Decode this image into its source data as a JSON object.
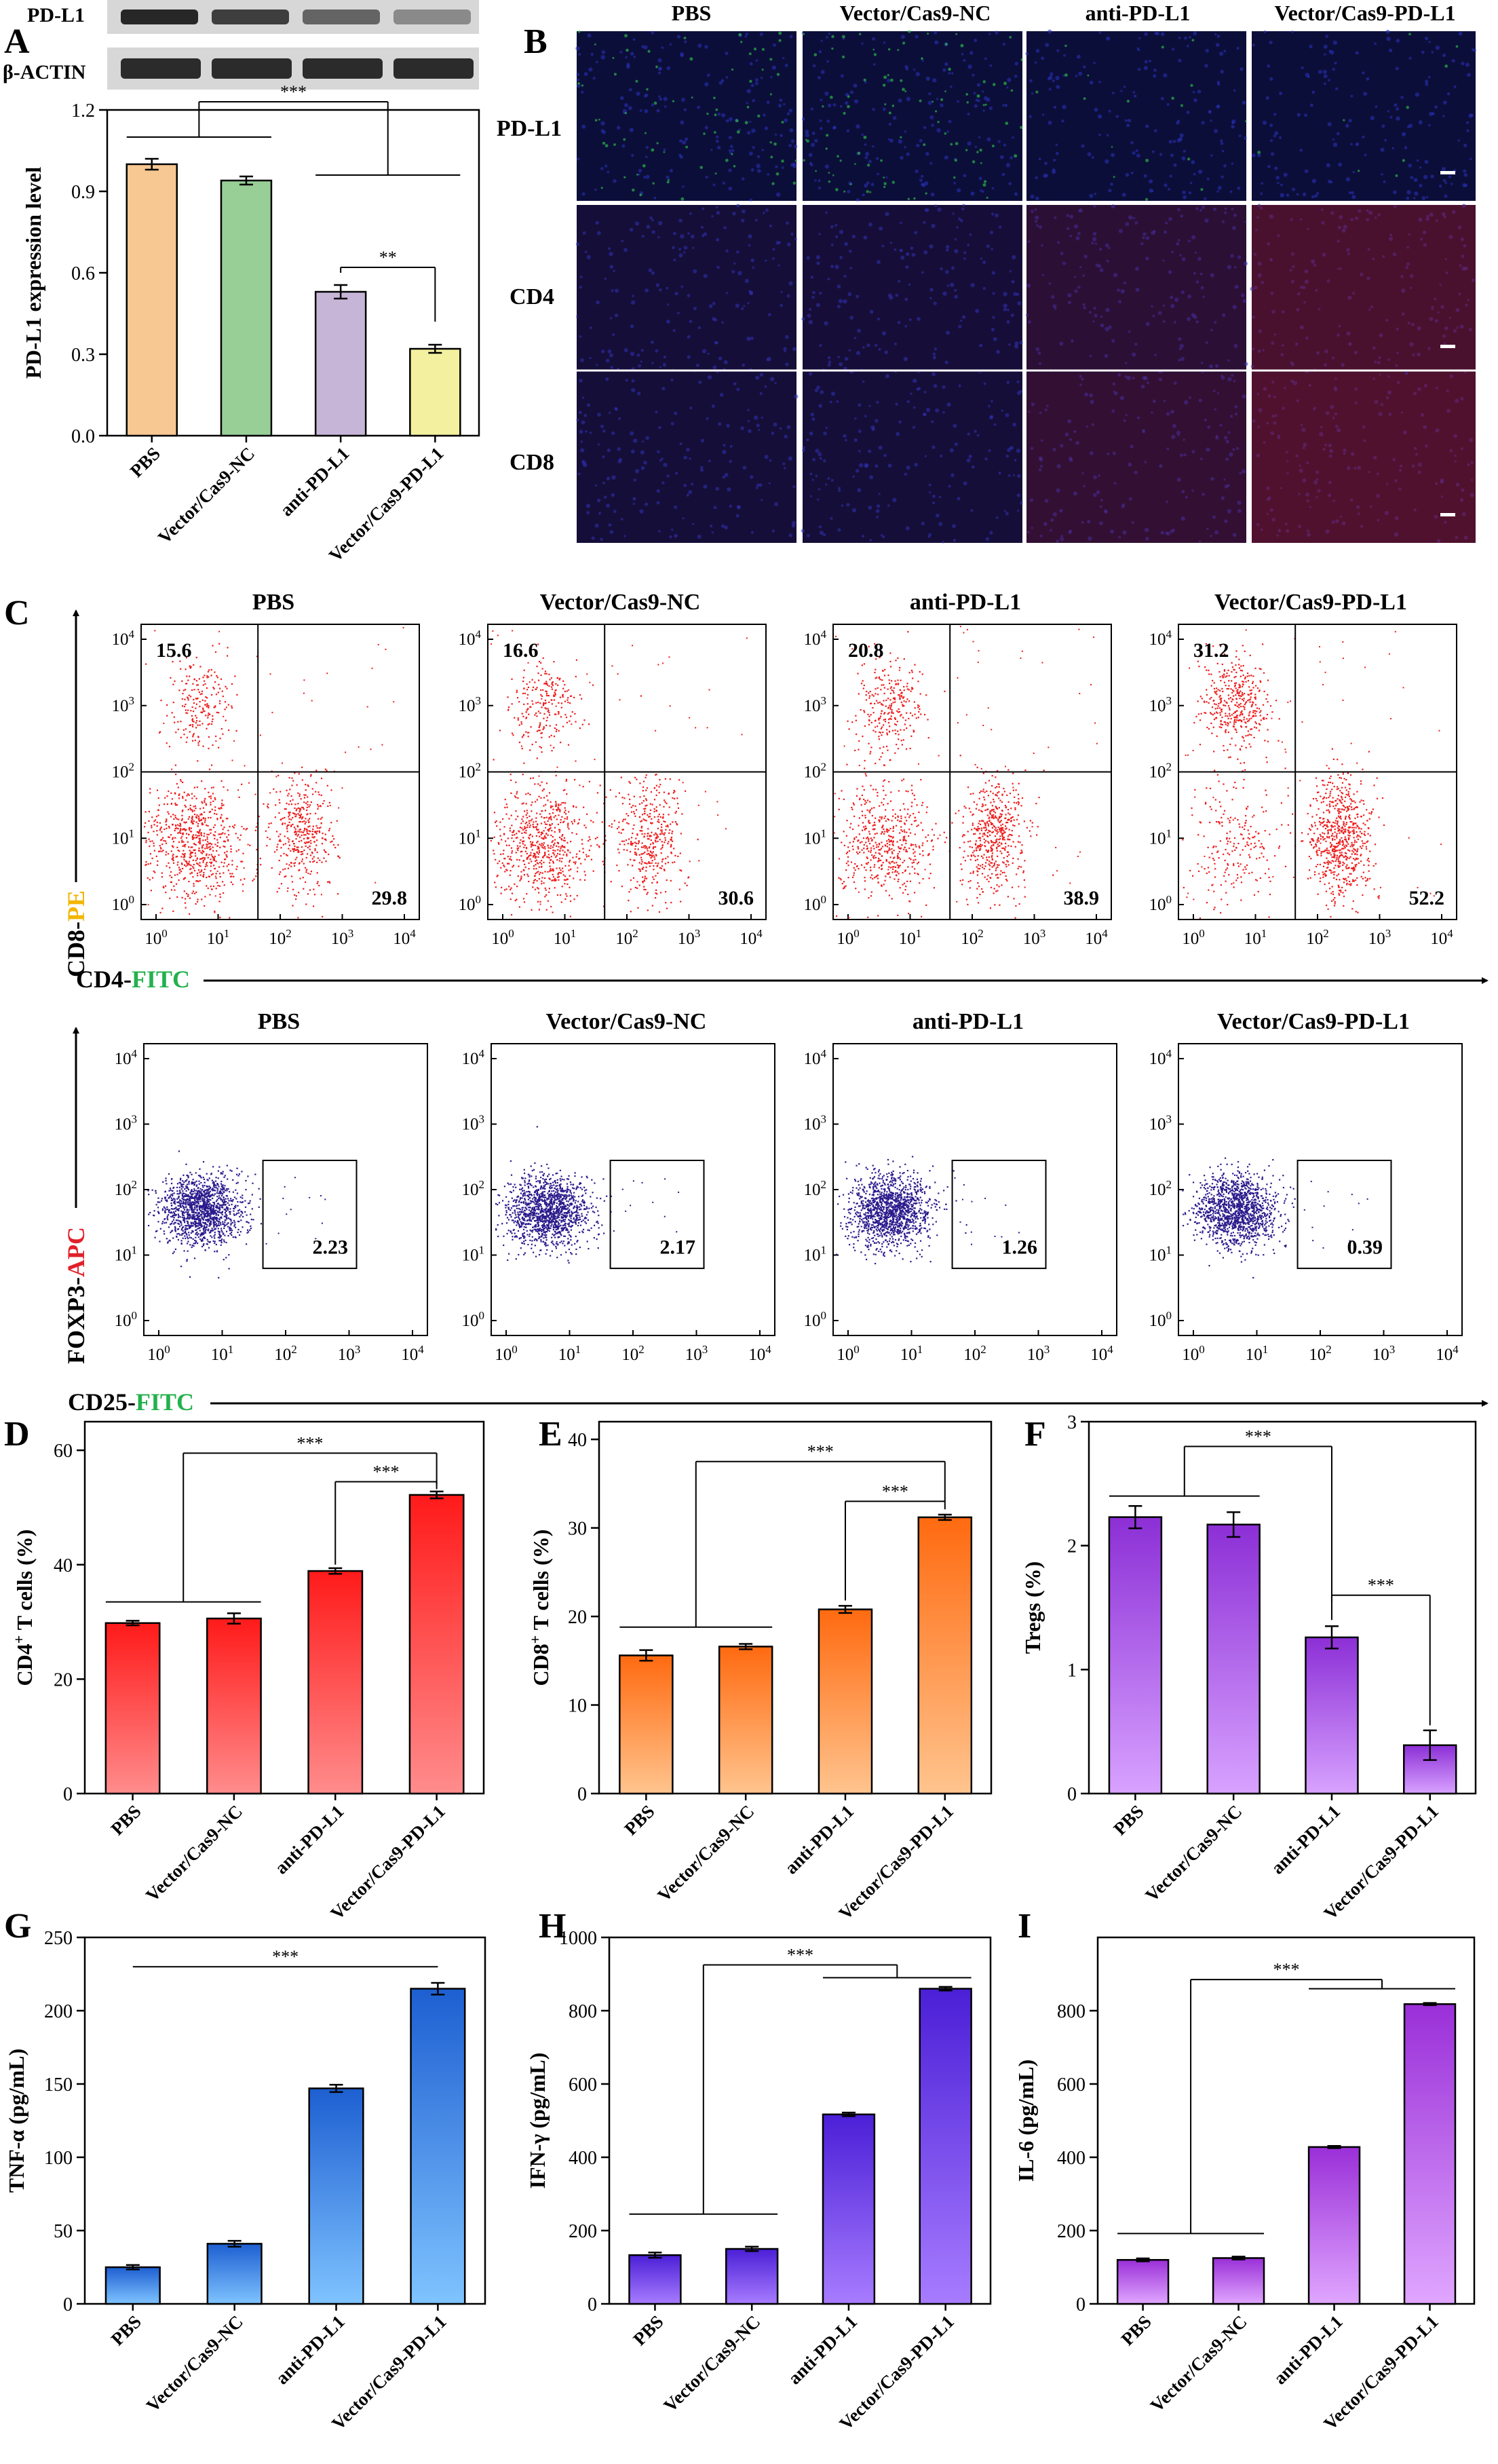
{
  "colors": {
    "PBS_A": "#f7c892",
    "NC_A": "#97cf96",
    "anti_A": "#c7b5d8",
    "vec_A": "#f3f09f",
    "red": "#ff3b30",
    "orange": "#ff8a33",
    "purple": "#a94fe0",
    "blue": "#3c8fe0",
    "violet": "#6a3de8",
    "magenta": "#b04be0",
    "cd4_axis": "#23b14d",
    "cd8_axis": "#f2b600",
    "foxp3_axis": "#e0212a",
    "nuclei": "#1f2aa8",
    "pdl1_stain": "#2fd04a",
    "cd_stain": "#e0201a"
  },
  "groups": [
    "PBS",
    "Vector/Cas9-NC",
    "anti-PD-L1",
    "Vector/Cas9-PD-L1"
  ],
  "panelA": {
    "letter": "A",
    "blot_labels": [
      "PD-L1",
      "β-ACTIN"
    ],
    "chart_data": {
      "type": "bar",
      "categories": [
        "PBS",
        "Vector/Cas9-NC",
        "anti-PD-L1",
        "Vector/Cas9-PD-L1"
      ],
      "values": [
        1.0,
        0.94,
        0.53,
        0.32
      ],
      "errors": [
        0.02,
        0.015,
        0.025,
        0.015
      ],
      "ylabel": "PD-L1 expression level",
      "ylim": [
        0,
        1.2
      ],
      "yticks": [
        0.0,
        0.3,
        0.6,
        0.9,
        1.2
      ],
      "ytick_labels": [
        "0.0",
        "0.3",
        "0.6",
        "0.9",
        "1.2"
      ],
      "significance": [
        "***",
        "**"
      ]
    }
  },
  "panelB": {
    "letter": "B",
    "columns": [
      "PBS",
      "Vector/Cas9-NC",
      "anti-PD-L1",
      "Vector/Cas9-PD-L1"
    ],
    "rows": [
      "PD-L1",
      "CD4",
      "CD8"
    ]
  },
  "panelC": {
    "letter": "C",
    "top": {
      "titles": [
        "PBS",
        "Vector/Cas9-NC",
        "anti-PD-L1",
        "Vector/Cas9-PD-L1"
      ],
      "upper_left": [
        "15.6",
        "16.6",
        "20.8",
        "31.2"
      ],
      "lower_right": [
        "29.8",
        "30.6",
        "38.9",
        "52.2"
      ],
      "xlabel_main": "CD4-",
      "xlabel_colored": "FITC",
      "ylabel_main": "CD8-",
      "ylabel_colored": "PE"
    },
    "bottom": {
      "titles": [
        "PBS",
        "Vector/Cas9-NC",
        "anti-PD-L1",
        "Vector/Cas9-PD-L1"
      ],
      "gate_values": [
        "2.23",
        "2.17",
        "1.26",
        "0.39"
      ],
      "xlabel_main": "CD25-",
      "xlabel_colored": "FITC",
      "ylabel_main": "FOXP3-",
      "ylabel_colored": "APC"
    },
    "tick_exponents": [
      "0",
      "1",
      "2",
      "3",
      "4"
    ],
    "tick_base": "10"
  },
  "chart_data": [
    {
      "panel": "D",
      "type": "bar",
      "categories": [
        "PBS",
        "Vector/Cas9-NC",
        "anti-PD-L1",
        "Vector/Cas9-PD-L1"
      ],
      "values": [
        29.8,
        30.6,
        38.9,
        52.2
      ],
      "errors": [
        0.4,
        0.9,
        0.5,
        0.6
      ],
      "ylabel_pre": "CD4",
      "ylabel_sup": "+",
      "ylabel_post": " T cells (%)",
      "ylim": [
        0,
        65
      ],
      "yticks": [
        0,
        20,
        40,
        60
      ],
      "ytick_labels": [
        "0",
        "20",
        "40",
        "60"
      ],
      "significance": [
        "***",
        "***"
      ]
    },
    {
      "panel": "E",
      "type": "bar",
      "categories": [
        "PBS",
        "Vector/Cas9-NC",
        "anti-PD-L1",
        "Vector/Cas9-PD-L1"
      ],
      "values": [
        15.6,
        16.6,
        20.8,
        31.2
      ],
      "errors": [
        0.6,
        0.3,
        0.4,
        0.3
      ],
      "ylabel_pre": "CD8",
      "ylabel_sup": "+",
      "ylabel_post": " T cells (%)",
      "ylim": [
        0,
        42
      ],
      "yticks": [
        0,
        10,
        20,
        30,
        40
      ],
      "ytick_labels": [
        "0",
        "10",
        "20",
        "30",
        "40"
      ],
      "significance": [
        "***",
        "***"
      ]
    },
    {
      "panel": "F",
      "type": "bar",
      "categories": [
        "PBS",
        "Vector/Cas9-NC",
        "anti-PD-L1",
        "Vector/Cas9-PD-L1"
      ],
      "values": [
        2.23,
        2.17,
        1.26,
        0.39
      ],
      "errors": [
        0.09,
        0.1,
        0.09,
        0.12
      ],
      "ylabel_pre": "Tregs (%)",
      "ylabel_sup": "",
      "ylabel_post": "",
      "ylim": [
        0,
        3
      ],
      "yticks": [
        0,
        1,
        2,
        3
      ],
      "ytick_labels": [
        "0",
        "1",
        "2",
        "3"
      ],
      "significance": [
        "***",
        "***"
      ]
    },
    {
      "panel": "G",
      "type": "bar",
      "categories": [
        "PBS",
        "Vector/Cas9-NC",
        "anti-PD-L1",
        "Vector/Cas9-PD-L1"
      ],
      "values": [
        25,
        41,
        147,
        215
      ],
      "errors": [
        1.5,
        2,
        2.5,
        4
      ],
      "ylabel_pre": "TNF-α (pg/mL)",
      "ylabel_sup": "",
      "ylabel_post": "",
      "ylim": [
        0,
        250
      ],
      "yticks": [
        0,
        50,
        100,
        150,
        200,
        250
      ],
      "ytick_labels": [
        "0",
        "50",
        "100",
        "150",
        "200",
        "250"
      ],
      "significance": [
        "***"
      ]
    },
    {
      "panel": "H",
      "type": "bar",
      "categories": [
        "PBS",
        "Vector/Cas9-NC",
        "anti-PD-L1",
        "Vector/Cas9-PD-L1"
      ],
      "values": [
        133,
        150,
        517,
        860
      ],
      "errors": [
        7,
        6,
        5,
        5
      ],
      "ylabel_pre": "IFN-γ (pg/mL)",
      "ylabel_sup": "",
      "ylabel_post": "",
      "ylim": [
        0,
        1000
      ],
      "yticks": [
        0,
        200,
        400,
        600,
        800,
        1000
      ],
      "ytick_labels": [
        "0",
        "200",
        "400",
        "600",
        "800",
        "1000"
      ],
      "significance": [
        "***"
      ]
    },
    {
      "panel": "I",
      "type": "bar",
      "categories": [
        "PBS",
        "Vector/Cas9-NC",
        "anti-PD-L1",
        "Vector/Cas9-PD-L1"
      ],
      "values": [
        120,
        125,
        428,
        818
      ],
      "errors": [
        4,
        4,
        3,
        3
      ],
      "ylabel_pre": "IL-6 (pg/mL)",
      "ylabel_sup": "",
      "ylabel_post": "",
      "ylim": [
        0,
        1000
      ],
      "yticks": [
        0,
        200,
        400,
        600,
        800
      ],
      "ytick_labels": [
        "0",
        "200",
        "400",
        "600",
        "800"
      ],
      "significance": [
        "***"
      ]
    }
  ]
}
